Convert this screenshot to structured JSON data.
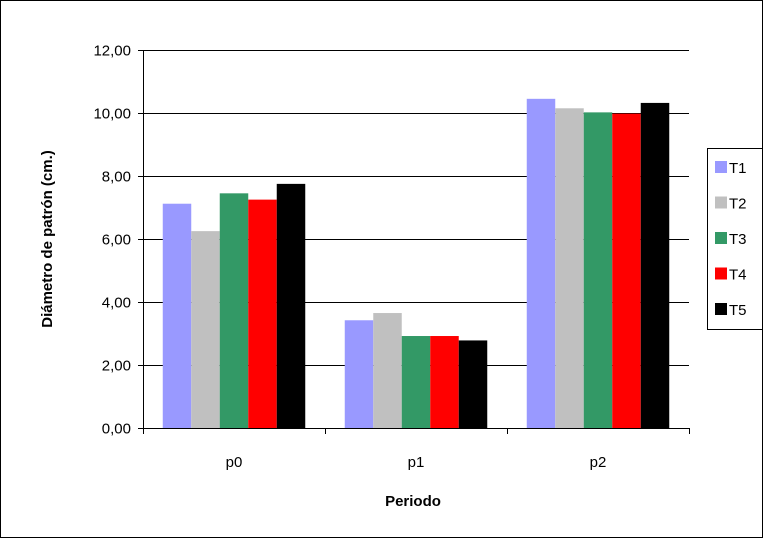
{
  "chart_data": {
    "type": "bar",
    "title": "",
    "xlabel": "Periodo",
    "ylabel": "Diámetro de patrón (cm.)",
    "categories": [
      "p0",
      "p1",
      "p2"
    ],
    "ylim": [
      0,
      12
    ],
    "yticks": [
      "0,00",
      "2,00",
      "4,00",
      "6,00",
      "8,00",
      "10,00",
      "12,00"
    ],
    "grid": true,
    "legend_position": "right",
    "series": [
      {
        "name": "T1",
        "color": "#9999FF",
        "values": [
          7.12,
          3.42,
          10.45
        ]
      },
      {
        "name": "T2",
        "color": "#C0C0C0",
        "values": [
          6.25,
          3.65,
          10.15
        ]
      },
      {
        "name": "T3",
        "color": "#339966",
        "values": [
          7.45,
          2.92,
          10.02
        ]
      },
      {
        "name": "T4",
        "color": "#FF0000",
        "values": [
          7.25,
          2.92,
          9.98
        ]
      },
      {
        "name": "T5",
        "color": "#000000",
        "values": [
          7.75,
          2.78,
          10.32
        ]
      }
    ]
  }
}
